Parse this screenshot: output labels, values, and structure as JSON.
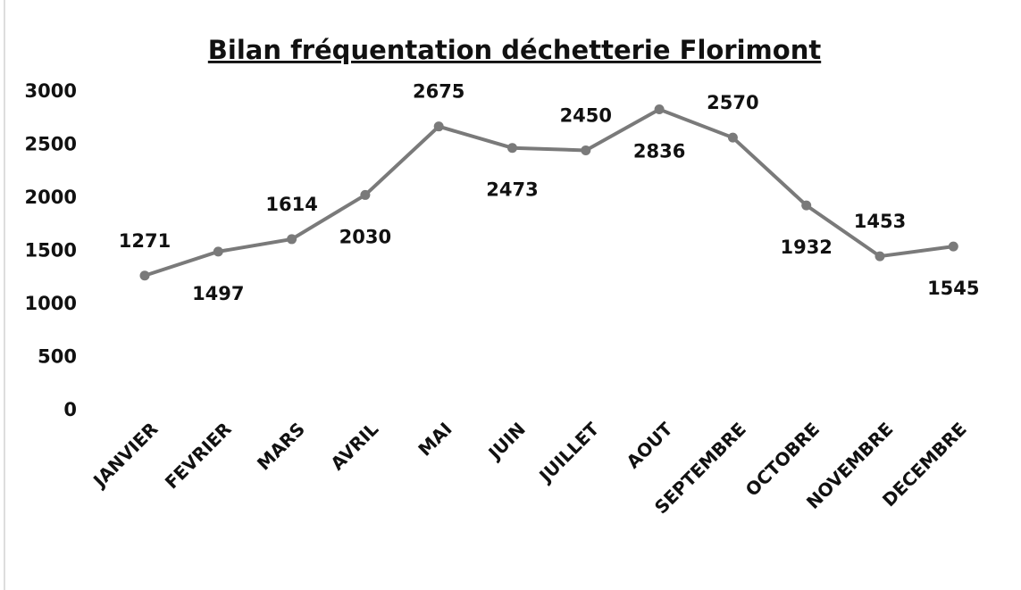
{
  "chart_data": {
    "type": "line",
    "title": "Bilan fréquentation déchetterie Florimont",
    "categories": [
      "JANVIER",
      "FEVRIER",
      "MARS",
      "AVRIL",
      "MAI",
      "JUIN",
      "JUILLET",
      "AOUT",
      "SEPTEMBRE",
      "OCTOBRE",
      "NOVEMBRE",
      "DECEMBRE"
    ],
    "values": [
      1271,
      1497,
      1614,
      2030,
      2675,
      2473,
      2450,
      2836,
      2570,
      1932,
      1453,
      1545
    ],
    "color": "#7a7a7a",
    "ylim": [
      0,
      3000
    ],
    "yticks": [
      0,
      500,
      1000,
      1500,
      2000,
      2500,
      3000
    ]
  }
}
